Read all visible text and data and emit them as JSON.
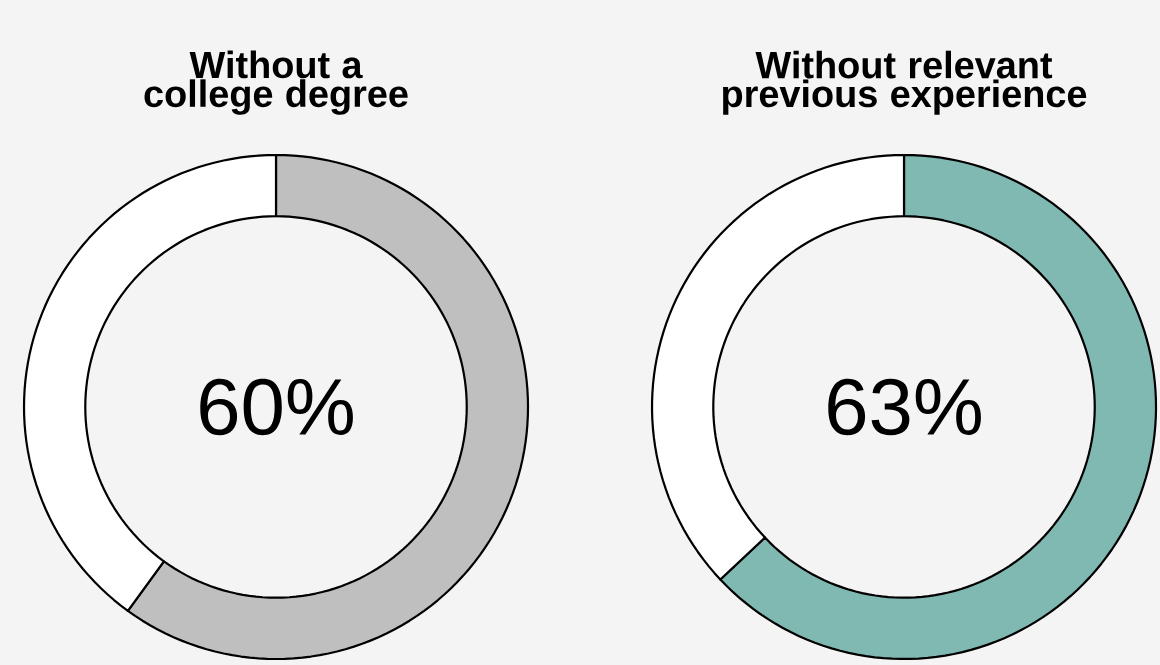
{
  "chart_data": [
    {
      "type": "donut",
      "title": "Without a college degree",
      "categories": [
        null,
        null
      ],
      "values": [
        60,
        40
      ],
      "colors": [
        "#bfbfbf",
        "#ffffff"
      ],
      "value_labels": [
        "60%",
        null
      ]
    },
    {
      "type": "donut",
      "title": "Without relevant previous experience",
      "categories": [
        null,
        null
      ],
      "values": [
        63,
        37
      ],
      "colors": [
        "#80b8b2",
        "#ffffff"
      ],
      "value_labels": [
        "63%",
        null
      ]
    }
  ]
}
